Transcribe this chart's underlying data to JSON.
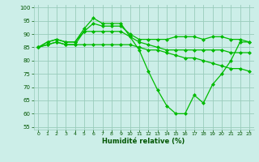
{
  "xlabel": "Humidité relative (%)",
  "bg_color": "#cceee8",
  "grid_color": "#99ccbb",
  "line_color": "#00bb00",
  "marker": "D",
  "markersize": 2.0,
  "linewidth": 0.9,
  "xlim": [
    -0.5,
    23.5
  ],
  "ylim": [
    54,
    101
  ],
  "yticks": [
    55,
    60,
    65,
    70,
    75,
    80,
    85,
    90,
    95,
    100
  ],
  "xticks": [
    0,
    1,
    2,
    3,
    4,
    5,
    6,
    7,
    8,
    9,
    10,
    11,
    12,
    13,
    14,
    15,
    16,
    17,
    18,
    19,
    20,
    21,
    22,
    23
  ],
  "series": [
    [
      85,
      87,
      88,
      87,
      87,
      92,
      96,
      94,
      94,
      94,
      89,
      84,
      76,
      69,
      63,
      60,
      60,
      67,
      64,
      71,
      75,
      80,
      87,
      87
    ],
    [
      85,
      87,
      88,
      87,
      87,
      91,
      94,
      93,
      93,
      93,
      90,
      88,
      88,
      88,
      88,
      89,
      89,
      89,
      88,
      89,
      89,
      88,
      88,
      87
    ],
    [
      85,
      86,
      87,
      86,
      86,
      91,
      91,
      91,
      91,
      91,
      89,
      87,
      86,
      85,
      84,
      84,
      84,
      84,
      84,
      84,
      84,
      83,
      83,
      83
    ],
    [
      85,
      86,
      87,
      86,
      86,
      86,
      86,
      86,
      86,
      86,
      86,
      85,
      84,
      84,
      83,
      82,
      81,
      81,
      80,
      79,
      78,
      77,
      77,
      76
    ]
  ]
}
